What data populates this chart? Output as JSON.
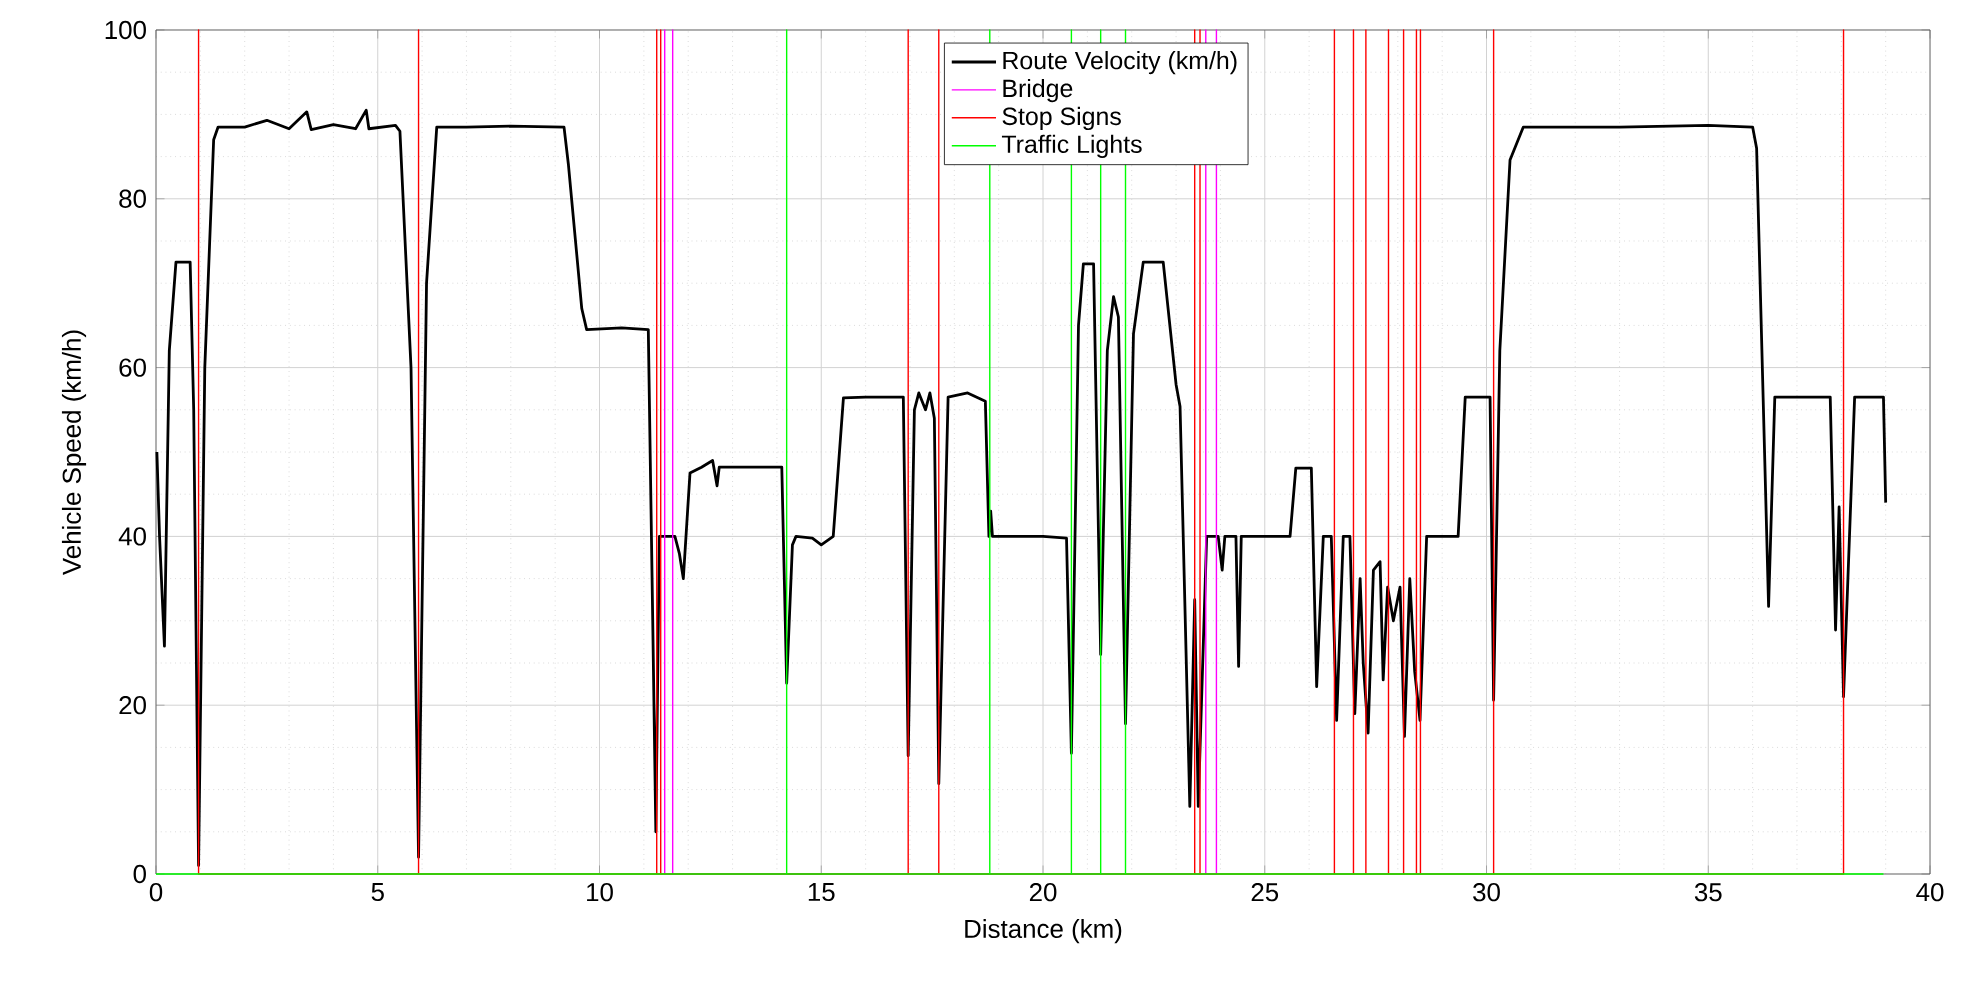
{
  "chart_data": {
    "type": "line",
    "xlabel": "Distance (km)",
    "ylabel": "Vehicle Speed (km/h)",
    "xlim": [
      0,
      40
    ],
    "ylim": [
      0,
      100
    ],
    "xticks": [
      0,
      5,
      10,
      15,
      20,
      25,
      30,
      35,
      40
    ],
    "yticks": [
      0,
      20,
      40,
      60,
      80,
      100
    ],
    "grid": true,
    "legend": "top",
    "line_style": "solid",
    "marker": "none",
    "series": [
      {
        "name": "Route Velocity (km/h)",
        "color": "#000000",
        "x": [
          0.02,
          0.08,
          0.19,
          0.3,
          0.45,
          0.77,
          0.85,
          0.96,
          1.1,
          1.3,
          1.4,
          2.0,
          2.5,
          3.0,
          3.4,
          3.5,
          4.0,
          4.5,
          4.74,
          4.8,
          5.4,
          5.5,
          5.75,
          5.92,
          6.1,
          6.33,
          7,
          8,
          9.2,
          9.3,
          9.6,
          9.71,
          10.5,
          11.1,
          11.2,
          11.27,
          11.35,
          11.7,
          11.8,
          11.89,
          12.04,
          12.3,
          12.55,
          12.65,
          12.7,
          14.11,
          14.22,
          14.35,
          14.43,
          14.8,
          15.0,
          15.27,
          15.5,
          16.0,
          16.85,
          16.96,
          17.1,
          17.2,
          17.35,
          17.45,
          17.55,
          17.65,
          17.86,
          18.3,
          18.7,
          18.78,
          18.82,
          18.86,
          20.0,
          20.53,
          20.64,
          20.8,
          20.91,
          21.14,
          21.3,
          21.45,
          21.59,
          21.7,
          21.86,
          22.04,
          22.26,
          22.71,
          23.0,
          23.09,
          23.31,
          23.42,
          23.5,
          23.69,
          23.95,
          24.04,
          24.1,
          24.35,
          24.41,
          24.47,
          25.57,
          25.7,
          26.05,
          26.17,
          26.32,
          26.5,
          26.62,
          26.77,
          26.92,
          27.03,
          27.15,
          27.22,
          27.33,
          27.45,
          27.6,
          27.67,
          27.77,
          27.9,
          28.05,
          28.15,
          28.27,
          28.38,
          28.5,
          28.65,
          29.36,
          29.52,
          30.08,
          30.16,
          30.3,
          30.53,
          30.83,
          33,
          35,
          36.0,
          36.09,
          36.36,
          36.5,
          37.75,
          37.87,
          37.95,
          38.05,
          38.3,
          38.95,
          39.0
        ],
        "values": [
          50,
          40,
          27,
          62,
          72.5,
          72.5,
          55,
          1,
          60,
          87,
          88.5,
          88.5,
          89.3,
          88.3,
          90.3,
          88.2,
          88.8,
          88.3,
          90.5,
          88.3,
          88.7,
          88,
          60,
          2,
          70,
          88.5,
          88.5,
          88.6,
          88.5,
          84,
          67,
          64.5,
          64.7,
          64.5,
          30,
          5,
          40,
          40,
          38,
          35,
          47.5,
          48.2,
          49,
          46,
          48.2,
          48.2,
          22.6,
          39,
          40,
          39.8,
          39,
          40,
          56.4,
          56.5,
          56.5,
          14,
          55,
          57,
          55,
          57,
          54,
          10.7,
          56.5,
          57,
          56,
          40,
          43,
          40,
          40,
          39.8,
          14.3,
          65,
          72.3,
          72.3,
          26,
          62,
          68.4,
          66,
          17.8,
          64,
          72.5,
          72.5,
          58,
          55.4,
          8,
          32.5,
          8,
          40,
          40,
          36,
          40,
          40,
          24.6,
          40,
          40,
          48.1,
          48.1,
          22.2,
          40,
          40,
          18.2,
          40,
          40,
          19,
          35,
          25,
          16.7,
          36,
          37,
          23,
          34,
          30,
          34,
          16.3,
          35,
          24,
          18.2,
          40,
          40,
          56.5,
          56.5,
          20.6,
          62,
          84.6,
          88.5,
          88.5,
          88.7,
          88.5,
          86,
          31.7,
          56.5,
          56.5,
          28.9,
          43.5,
          21,
          56.5,
          56.5,
          44
        ]
      },
      {
        "name": "Bridge",
        "color": "#ff00ff",
        "x": [
          11.47,
          11.47,
          11.47,
          11.65,
          11.65,
          11.65,
          23.67,
          23.67,
          23.67,
          23.91,
          23.91,
          23.91
        ],
        "values": [
          0,
          100,
          0,
          0,
          100,
          0,
          0,
          100,
          0,
          0,
          100,
          0
        ]
      },
      {
        "name": "Stop Signs",
        "color": "#ff0000",
        "x": [
          0.96,
          0.96,
          0.96,
          5.92,
          5.92,
          5.92,
          11.29,
          11.29,
          11.29,
          11.38,
          11.38,
          11.38,
          16.96,
          16.96,
          16.96,
          17.65,
          17.65,
          17.65,
          23.42,
          23.42,
          23.42,
          23.54,
          23.54,
          23.54,
          26.57,
          26.57,
          26.57,
          27.0,
          27.0,
          27.0,
          27.28,
          27.28,
          27.28,
          27.79,
          27.79,
          27.79,
          28.13,
          28.13,
          28.13,
          28.42,
          28.42,
          28.42,
          28.51,
          28.51,
          28.51,
          30.16,
          30.16,
          30.16,
          38.05,
          38.05,
          38.05
        ],
        "values": [
          0,
          100,
          0,
          0,
          100,
          0,
          0,
          100,
          0,
          0,
          100,
          0,
          0,
          100,
          0,
          0,
          100,
          0,
          0,
          100,
          0,
          0,
          100,
          0,
          0,
          100,
          0,
          0,
          100,
          0,
          0,
          100,
          0,
          0,
          100,
          0,
          0,
          100,
          0,
          0,
          100,
          0,
          0,
          100,
          0,
          0,
          100,
          0,
          0,
          100,
          0
        ]
      },
      {
        "name": "Traffic Lights",
        "color": "#00ff00",
        "x": [
          0,
          14.22,
          14.22,
          14.22,
          18.8,
          18.8,
          18.8,
          20.64,
          20.64,
          20.64,
          21.3,
          21.3,
          21.3,
          21.86,
          21.86,
          21.86,
          38.95
        ],
        "values": [
          0,
          0,
          100,
          0,
          0,
          100,
          0,
          0,
          100,
          0,
          0,
          100,
          0,
          0,
          100,
          0,
          0
        ]
      }
    ]
  }
}
